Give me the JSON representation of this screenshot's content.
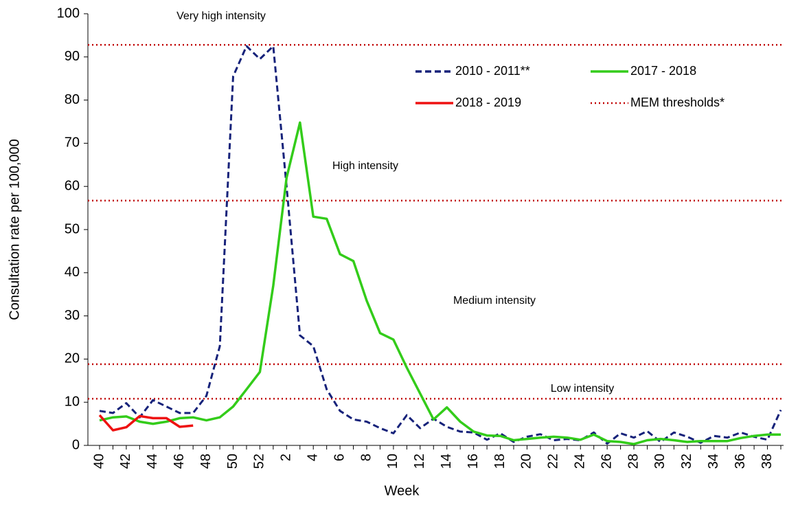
{
  "chart_data": {
    "type": "line",
    "x_label": "Week",
    "y_label": "Consultation rate per 100,000",
    "categories": [
      40,
      null,
      42,
      null,
      44,
      null,
      46,
      null,
      48,
      null,
      50,
      null,
      52,
      null,
      2,
      null,
      4,
      null,
      6,
      null,
      8,
      null,
      10,
      null,
      12,
      null,
      14,
      null,
      16,
      null,
      18,
      null,
      20,
      null,
      22,
      null,
      24,
      null,
      26,
      null,
      28,
      null,
      30,
      null,
      32,
      null,
      34,
      null,
      36,
      null,
      38,
      null
    ],
    "series": [
      {
        "name": "2010 - 2011**",
        "color": "#16227a",
        "dashed": true,
        "values": [
          8,
          7.5,
          9.8,
          6.5,
          10.5,
          9,
          7.5,
          7.5,
          11.5,
          23,
          85.5,
          92.5,
          89.5,
          92.5,
          60,
          25.5,
          23,
          13,
          8,
          6,
          5.5,
          4,
          2.8,
          7,
          4,
          6.2,
          4.3,
          3.2,
          3,
          1.3,
          2.8,
          0.8,
          2,
          2.6,
          1.2,
          1.5,
          1.2,
          3,
          0.4,
          2.8,
          1.8,
          3.3,
          0.8,
          3,
          2,
          0.6,
          2.2,
          1.8,
          3,
          2,
          1.3,
          8.2
        ]
      },
      {
        "name": "2017 - 2018",
        "color": "#33cc1a",
        "dashed": false,
        "values": [
          5.8,
          6.5,
          6.7,
          5.5,
          5,
          5.5,
          6.3,
          6.5,
          5.8,
          6.5,
          9,
          13,
          17,
          37,
          62,
          74.8,
          53,
          52.5,
          44.3,
          42.7,
          33.5,
          26,
          24.5,
          18,
          12,
          6,
          8.8,
          5.5,
          3.2,
          2.3,
          2.2,
          1.2,
          1.5,
          1.8,
          2,
          1.8,
          1.3,
          2.5,
          1,
          0.8,
          0.3,
          1.2,
          1.5,
          1.2,
          0.8,
          1,
          1,
          1,
          1.7,
          2.2,
          2.5,
          2.5
        ]
      },
      {
        "name": "2018 - 2019",
        "color": "#ee1111",
        "dashed": false,
        "values": [
          7,
          3.5,
          4.2,
          6.8,
          6.3,
          6.3,
          4.3,
          4.6,
          null,
          null,
          null,
          null,
          null,
          null,
          null,
          null,
          null,
          null,
          null,
          null,
          null,
          null,
          null,
          null,
          null,
          null,
          null,
          null,
          null,
          null,
          null,
          null,
          null,
          null,
          null,
          null,
          null,
          null,
          null,
          null,
          null,
          null,
          null,
          null,
          null,
          null,
          null,
          null,
          null,
          null,
          null,
          null
        ]
      }
    ],
    "thresholds": {
      "name": "MEM thresholds*",
      "color": "#c00000",
      "values": [
        10.8,
        18.8,
        56.7,
        92.8
      ]
    },
    "annotations": [
      "Very high intensity",
      "High intensity",
      "Medium intensity",
      "Low intensity"
    ],
    "ylim": [
      0,
      100
    ],
    "yticks": [
      0,
      10,
      20,
      30,
      40,
      50,
      60,
      70,
      80,
      90,
      100
    ]
  }
}
